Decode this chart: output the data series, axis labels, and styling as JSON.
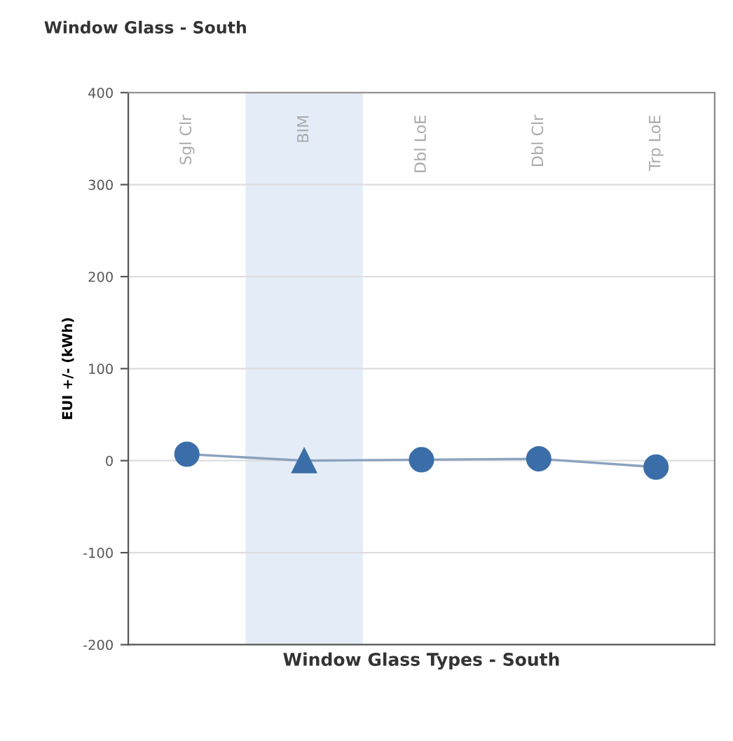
{
  "chart_data": {
    "type": "line",
    "title": "Window Glass - South",
    "xlabel": "Window Glass Types - South",
    "ylabel": "EUI +/- (kWh)",
    "categories": [
      "Sgl Clr",
      "BIM",
      "Dbl LoE",
      "Dbl Clr",
      "Trp LoE"
    ],
    "series": [
      {
        "color": "#3b6ea8",
        "values": [
          7,
          0,
          1,
          2,
          -7
        ],
        "marker": [
          "circle",
          "triangle",
          "circle",
          "circle",
          "circle"
        ]
      }
    ],
    "ylim": [
      -200,
      400
    ],
    "yticks": [
      -200,
      -100,
      0,
      100,
      200,
      300,
      400
    ],
    "grid": "y",
    "bands": [
      {
        "axis": "x",
        "from": "BIM",
        "to": "BIM",
        "color": "#e4edf7"
      }
    ]
  }
}
